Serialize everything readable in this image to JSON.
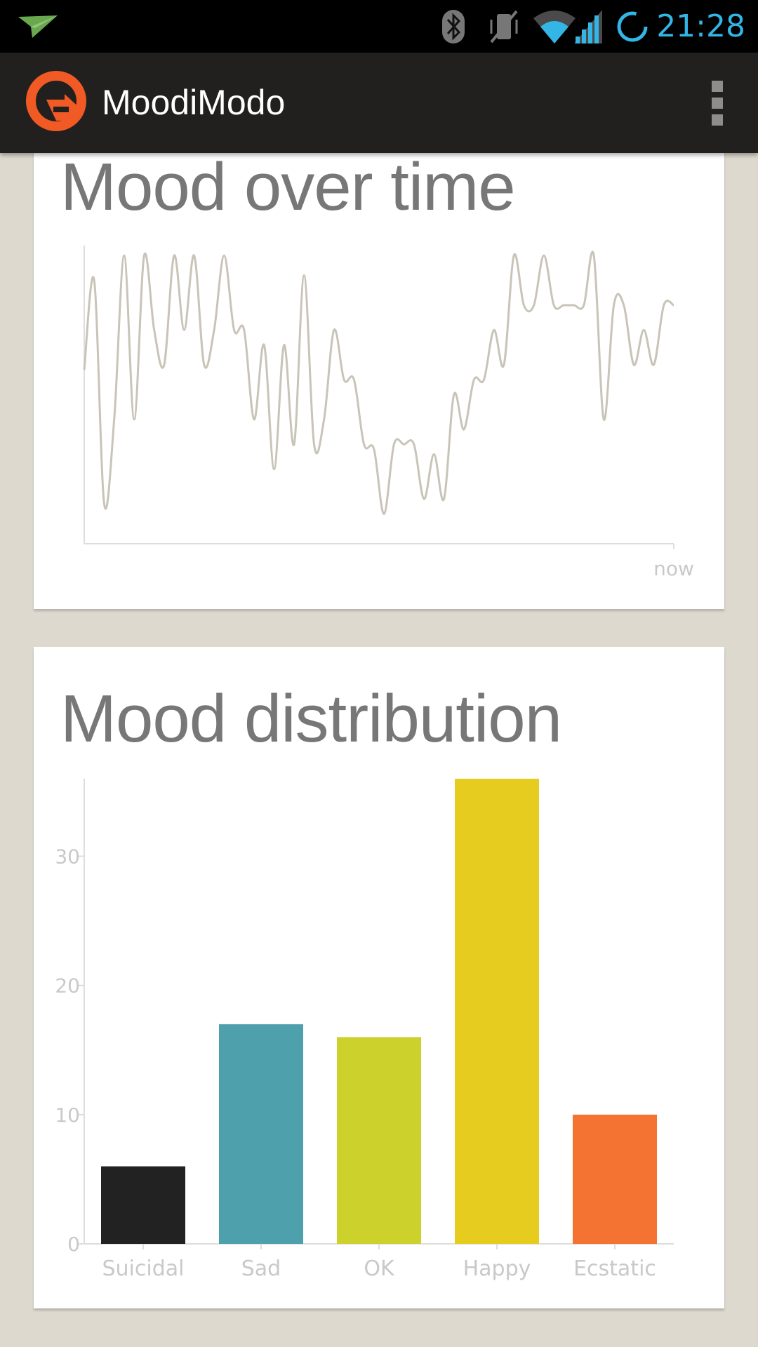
{
  "status_bar": {
    "time": "21:28",
    "icons": [
      "notification-plane-icon",
      "bluetooth-icon",
      "vibrate-muted-icon",
      "wifi-icon",
      "signal-icon",
      "sync-progress-icon"
    ],
    "accent": "#33b5e5"
  },
  "action_bar": {
    "title": "MoodiModo",
    "logo_color": "#f15a24",
    "overflow_icon": "overflow-menu-icon"
  },
  "mood_over_time": {
    "title": "Mood over time",
    "x_end_label": "now",
    "line_color": "#c9c4b8"
  },
  "mood_distribution": {
    "title": "Mood distribution"
  },
  "chart_data": [
    {
      "type": "line",
      "title": "Mood over time",
      "x_end_label": "now",
      "ylim": [
        0,
        6
      ],
      "values": [
        3.5,
        5.3,
        0.8,
        2.5,
        5.8,
        2.5,
        5.8,
        4.3,
        3.6,
        5.8,
        4.3,
        5.8,
        3.6,
        4.3,
        5.8,
        4.3,
        4.3,
        2.5,
        4.0,
        1.5,
        4.0,
        2.0,
        5.4,
        2.0,
        2.5,
        4.3,
        3.3,
        3.3,
        2.0,
        1.9,
        0.6,
        2.0,
        2.0,
        2.0,
        0.9,
        1.8,
        0.9,
        3.0,
        2.3,
        3.3,
        3.3,
        4.3,
        3.6,
        5.8,
        4.8,
        4.8,
        5.8,
        4.8,
        4.8,
        4.8,
        4.8,
        5.8,
        2.5,
        4.8,
        4.8,
        3.6,
        4.3,
        3.6,
        4.8,
        4.8
      ],
      "line_color": "#c9c4b8"
    },
    {
      "type": "bar",
      "title": "Mood distribution",
      "categories": [
        "Suicidal",
        "Sad",
        "OK",
        "Happy",
        "Ecstatic"
      ],
      "values": [
        6,
        17,
        16,
        36,
        10
      ],
      "colors": [
        "#222222",
        "#4fa0ad",
        "#cdd12c",
        "#e6cc1e",
        "#f47333"
      ],
      "yticks": [
        0,
        10,
        20,
        30
      ],
      "ylim": [
        0,
        36
      ],
      "xlabel": "",
      "ylabel": ""
    }
  ]
}
